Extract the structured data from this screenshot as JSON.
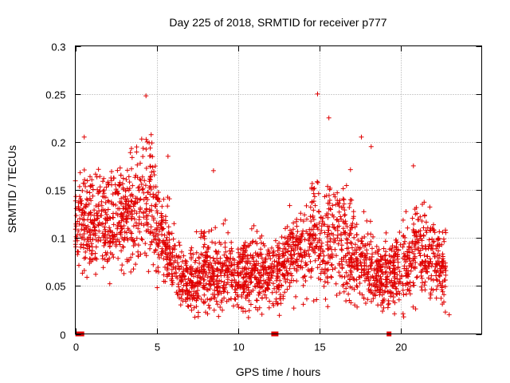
{
  "chart_data": {
    "type": "scatter",
    "title": "Day 225 of 2018, SRMTID for receiver p777",
    "xlabel": "GPS time / hours",
    "ylabel": "SRMTID / TECUs",
    "xlim": [
      0,
      25
    ],
    "ylim": [
      0,
      0.3
    ],
    "xticks": [
      0,
      5,
      10,
      15,
      20
    ],
    "xtick_labels": [
      "0",
      "5",
      "10",
      "15",
      "20"
    ],
    "yticks": [
      0,
      0.05,
      0.1,
      0.15,
      0.2,
      0.25,
      0.3
    ],
    "ytick_labels": [
      "0",
      "0.05",
      "0.1",
      "0.15",
      "0.2",
      "0.25",
      "0.3"
    ],
    "grid": true,
    "marker": "plus",
    "color": "#e00000",
    "envelope": {
      "x": [
        0.0,
        0.5,
        1.0,
        1.5,
        2.0,
        2.5,
        3.0,
        3.5,
        4.0,
        4.5,
        5.0,
        5.5,
        6.0,
        6.5,
        7.0,
        7.5,
        8.0,
        8.5,
        9.0,
        9.5,
        10.0,
        10.5,
        11.0,
        11.5,
        12.0,
        12.5,
        13.0,
        13.5,
        14.0,
        14.5,
        15.0,
        15.5,
        16.0,
        16.5,
        17.0,
        17.5,
        18.0,
        18.5,
        19.0,
        19.5,
        20.0,
        20.5,
        21.0,
        21.5,
        22.0,
        22.5,
        22.8
      ],
      "mean": [
        0.12,
        0.115,
        0.11,
        0.125,
        0.115,
        0.12,
        0.115,
        0.125,
        0.13,
        0.145,
        0.115,
        0.1,
        0.075,
        0.06,
        0.055,
        0.055,
        0.07,
        0.065,
        0.065,
        0.065,
        0.06,
        0.065,
        0.07,
        0.06,
        0.065,
        0.065,
        0.08,
        0.085,
        0.085,
        0.095,
        0.1,
        0.1,
        0.105,
        0.095,
        0.09,
        0.08,
        0.07,
        0.06,
        0.06,
        0.065,
        0.07,
        0.075,
        0.09,
        0.085,
        0.075,
        0.07,
        0.065
      ],
      "spread": [
        0.025,
        0.03,
        0.035,
        0.035,
        0.035,
        0.035,
        0.035,
        0.04,
        0.04,
        0.05,
        0.035,
        0.03,
        0.025,
        0.02,
        0.02,
        0.025,
        0.025,
        0.025,
        0.025,
        0.025,
        0.02,
        0.025,
        0.025,
        0.02,
        0.02,
        0.025,
        0.025,
        0.03,
        0.03,
        0.035,
        0.04,
        0.04,
        0.035,
        0.035,
        0.035,
        0.03,
        0.03,
        0.025,
        0.025,
        0.025,
        0.03,
        0.03,
        0.035,
        0.035,
        0.03,
        0.025,
        0.025
      ]
    },
    "num_points": 2600,
    "outliers": [
      {
        "x": 4.35,
        "y": 0.248
      },
      {
        "x": 14.9,
        "y": 0.25
      },
      {
        "x": 0.55,
        "y": 0.205
      },
      {
        "x": 15.6,
        "y": 0.225
      },
      {
        "x": 17.6,
        "y": 0.205
      },
      {
        "x": 18.2,
        "y": 0.195
      },
      {
        "x": 8.5,
        "y": 0.17
      },
      {
        "x": 20.8,
        "y": 0.175
      },
      {
        "x": 23.0,
        "y": 0.02
      },
      {
        "x": 5.7,
        "y": 0.185
      }
    ],
    "zero_markers": [
      0.15,
      0.4,
      12.2,
      12.35,
      19.3
    ]
  }
}
